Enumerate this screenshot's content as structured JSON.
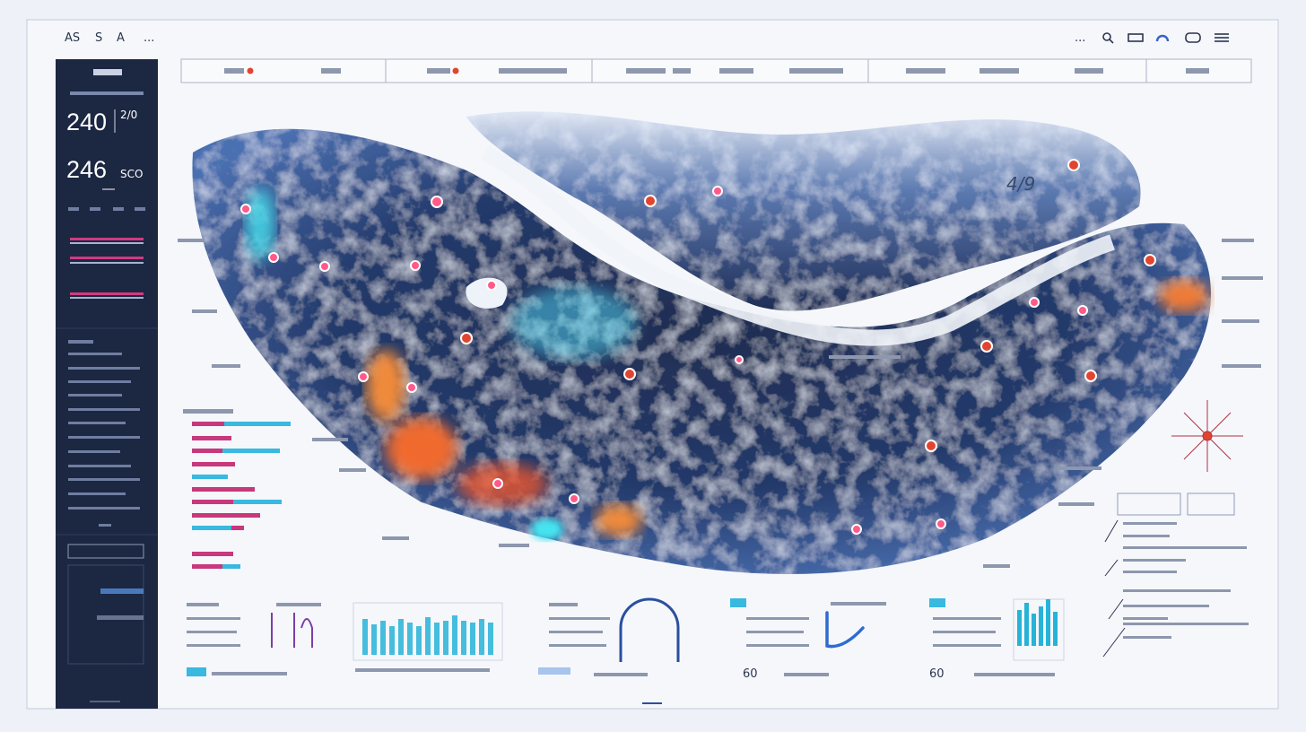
{
  "header": {
    "left_items": [
      "AS",
      "S",
      "A",
      "..."
    ]
  },
  "sidebar": {
    "metrics": [
      {
        "value": "240",
        "side": "2/0"
      },
      {
        "value": "246",
        "side": "SCO"
      }
    ]
  },
  "map": {
    "annotation": "4/9"
  },
  "widgets": {
    "gauge_labels": [
      "60",
      "60"
    ]
  }
}
